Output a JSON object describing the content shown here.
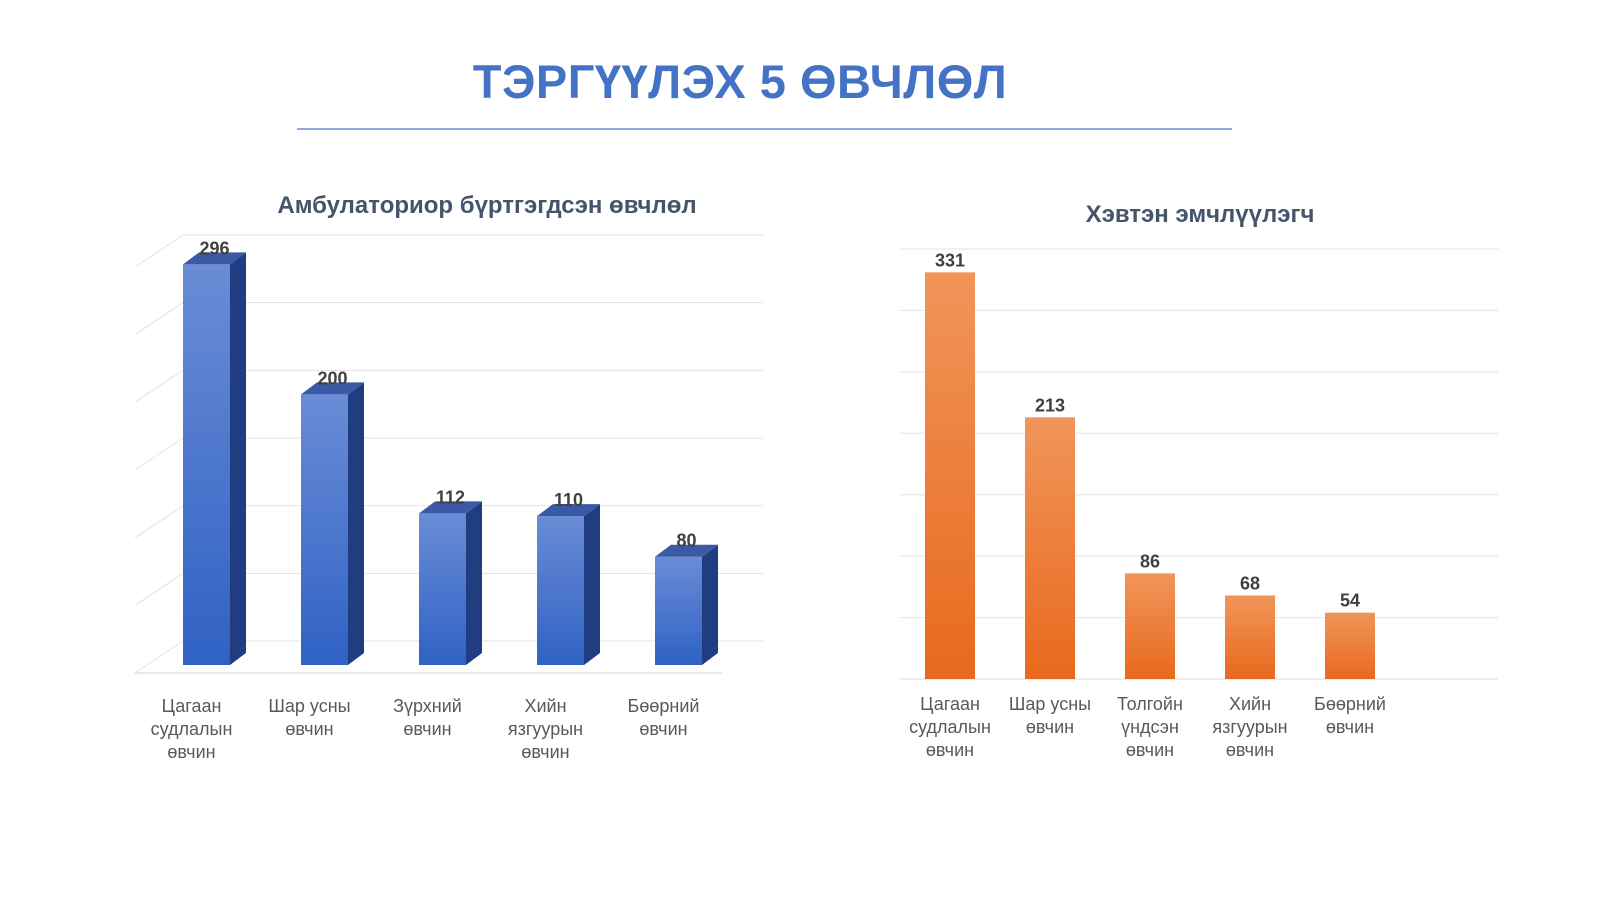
{
  "page": {
    "title": "ТЭРГҮҮЛЭХ 5 ӨВЧЛӨЛ"
  },
  "colors": {
    "title": "#4472c4",
    "rule": "#8faadc",
    "grid": "#e3e3e3",
    "blue_front_top": "#6a8cd6",
    "blue_front_bottom": "#2f62c4",
    "blue_side": "#1f3d80",
    "blue_top": "#3a5aa8",
    "orange_top": "#f1955a",
    "orange_bottom": "#e8691d"
  },
  "chart_data": [
    {
      "type": "bar",
      "style": "3d-column",
      "title": "Амбулаториор бүртгэгдсэн өвчлөл",
      "categories": [
        [
          "Цагаан",
          "судлалын",
          "өвчин"
        ],
        [
          "Шар усны",
          "өвчин"
        ],
        [
          "Зүрхний",
          "өвчин"
        ],
        [
          "Хийн",
          "язгуурын",
          "өвчин"
        ],
        [
          "Бөөрний",
          "өвчин"
        ]
      ],
      "values": [
        296,
        200,
        112,
        110,
        80
      ],
      "value_labels": [
        "296",
        "200",
        "112",
        "110",
        "80"
      ],
      "ylim": [
        0,
        300
      ],
      "grid": true,
      "legend": "none",
      "xlabel": "",
      "ylabel": ""
    },
    {
      "type": "bar",
      "style": "flat-column",
      "title": "Хэвтэн эмчлүүлэгч",
      "categories": [
        [
          "Цагаан",
          "судлалын",
          "өвчин"
        ],
        [
          "Шар усны",
          "өвчин"
        ],
        [
          "Толгойн",
          "үндсэн",
          "өвчин"
        ],
        [
          "Хийн",
          "язгуурын",
          "өвчин"
        ],
        [
          "Бөөрний",
          "өвчин"
        ]
      ],
      "values": [
        331,
        213,
        86,
        68,
        54
      ],
      "value_labels": [
        "331",
        "213",
        "86",
        "68",
        "54"
      ],
      "ylim": [
        0,
        350
      ],
      "grid": true,
      "legend": "none",
      "xlabel": "",
      "ylabel": ""
    }
  ]
}
